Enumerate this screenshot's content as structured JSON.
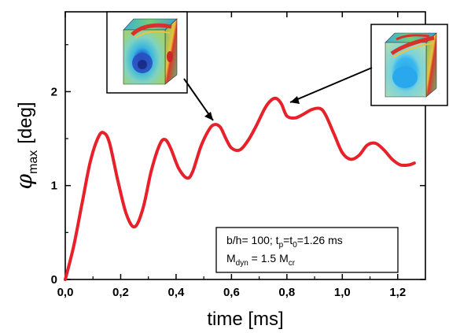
{
  "chart_data": {
    "type": "line",
    "xlabel": "time [ms]",
    "ylabel": {
      "symbol": "φ",
      "subscript": "max",
      "unit": "[deg]"
    },
    "xlim": [
      0.0,
      1.3
    ],
    "ylim": [
      0.0,
      2.85
    ],
    "x_ticks": [
      0.0,
      0.2,
      0.4,
      0.6,
      0.8,
      1.0,
      1.2
    ],
    "x_tick_labels": [
      "0,0",
      "0,2",
      "0,4",
      "0,6",
      "0,8",
      "1,0",
      "1,2"
    ],
    "y_ticks": [
      0,
      1,
      2
    ],
    "y_tick_labels": [
      "0",
      "1",
      "2"
    ],
    "grid": "none",
    "line_color": "#e8202a",
    "series": [
      {
        "x": [
          0.0,
          0.03,
          0.06,
          0.09,
          0.12,
          0.14,
          0.16,
          0.19,
          0.22,
          0.25,
          0.28,
          0.31,
          0.34,
          0.36,
          0.38,
          0.41,
          0.44,
          0.46,
          0.49,
          0.52,
          0.54,
          0.56,
          0.58,
          0.6,
          0.63,
          0.66,
          0.69,
          0.72,
          0.74,
          0.76,
          0.78,
          0.8,
          0.83,
          0.86,
          0.89,
          0.92,
          0.94,
          0.97,
          1.0,
          1.03,
          1.06,
          1.09,
          1.12,
          1.15,
          1.18,
          1.21,
          1.24,
          1.26
        ],
        "y": [
          0.0,
          0.35,
          0.8,
          1.25,
          1.52,
          1.56,
          1.45,
          1.05,
          0.7,
          0.56,
          0.75,
          1.15,
          1.43,
          1.49,
          1.4,
          1.18,
          1.08,
          1.15,
          1.42,
          1.6,
          1.65,
          1.62,
          1.5,
          1.4,
          1.38,
          1.48,
          1.64,
          1.82,
          1.9,
          1.93,
          1.87,
          1.74,
          1.72,
          1.76,
          1.81,
          1.82,
          1.75,
          1.55,
          1.35,
          1.28,
          1.32,
          1.43,
          1.45,
          1.38,
          1.28,
          1.22,
          1.22,
          1.24
        ]
      }
    ],
    "annotation": {
      "line1": {
        "bh": "b/h= 100; t",
        "sub1": "p",
        "mid": "=t",
        "sub2": "0",
        "rest": "=1.26 ms"
      },
      "line2": {
        "m1": "M",
        "sub1": "dyn",
        "mid": " = 1.5 M",
        "sub2": "cr"
      }
    },
    "insets": [
      {
        "name": "mode-shape-inset-left",
        "points_to": {
          "x": 0.56,
          "y": 1.63
        }
      },
      {
        "name": "mode-shape-inset-right",
        "points_to": {
          "x": 0.8,
          "y": 1.88
        }
      }
    ]
  }
}
